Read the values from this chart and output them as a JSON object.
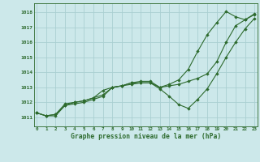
{
  "title": "Graphe pression niveau de la mer (hPa)",
  "xlabel_hours": [
    0,
    1,
    2,
    3,
    4,
    5,
    6,
    7,
    8,
    9,
    10,
    11,
    12,
    13,
    14,
    15,
    16,
    17,
    18,
    19,
    20,
    21,
    22,
    23
  ],
  "ylim": [
    1010.4,
    1018.6
  ],
  "xlim": [
    -0.3,
    23.3
  ],
  "yticks": [
    1011,
    1012,
    1013,
    1014,
    1015,
    1016,
    1017,
    1018
  ],
  "bg_color": "#cce8ea",
  "grid_color": "#aacfd2",
  "line_color": "#2d6a2d",
  "text_color": "#2d6a2d",
  "lines": [
    [
      1011.3,
      1011.1,
      1011.1,
      1011.8,
      1011.9,
      1012.0,
      1012.2,
      1012.4,
      1013.0,
      1013.1,
      1013.2,
      1013.3,
      1013.3,
      1013.0,
      1013.1,
      1013.2,
      1013.4,
      1013.6,
      1013.9,
      1014.7,
      1016.0,
      1017.1,
      1017.5,
      1017.85
    ],
    [
      1011.3,
      1011.1,
      1011.2,
      1011.9,
      1012.0,
      1012.1,
      1012.3,
      1012.8,
      1013.0,
      1013.1,
      1013.3,
      1013.3,
      1013.3,
      1012.9,
      1012.4,
      1011.85,
      1011.6,
      1012.2,
      1012.9,
      1013.9,
      1015.0,
      1016.0,
      1016.9,
      1017.6
    ],
    [
      1011.3,
      1011.1,
      1011.2,
      1011.8,
      1012.0,
      1012.1,
      1012.3,
      1012.5,
      1013.0,
      1013.1,
      1013.3,
      1013.4,
      1013.4,
      1013.0,
      1013.2,
      1013.5,
      1014.2,
      1015.4,
      1016.5,
      1017.3,
      1018.05,
      1017.7,
      1017.5,
      1017.9
    ]
  ]
}
